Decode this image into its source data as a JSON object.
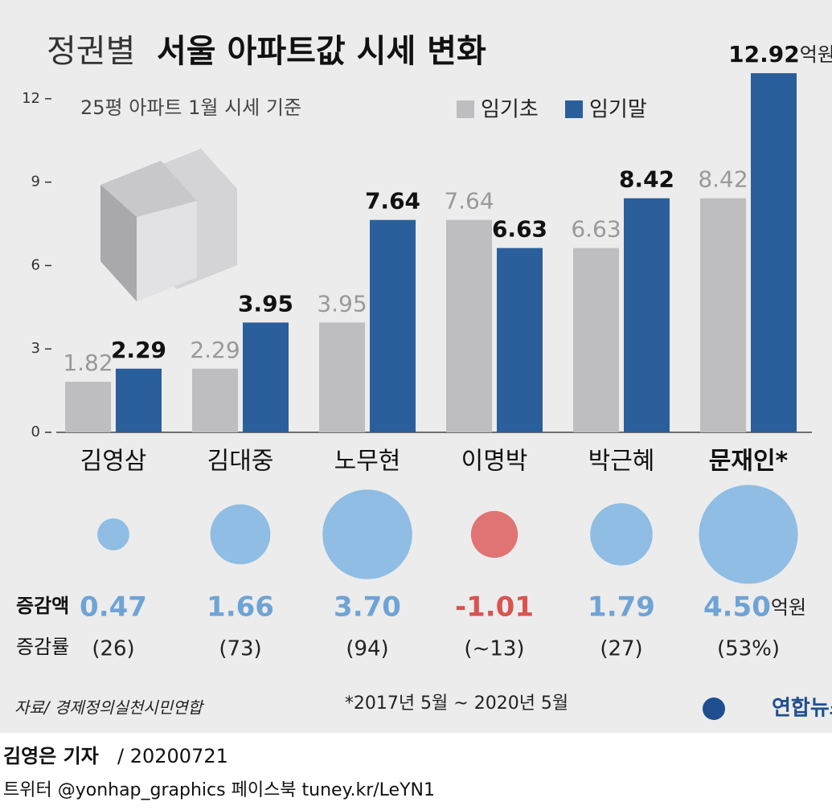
{
  "chart_data": {
    "type": "bar",
    "title_lead": "정권별",
    "title": "서울 아파트값 시세 변화",
    "subtitle": "25평 아파트 1월 시세 기준",
    "categories": [
      "김영삼",
      "김대중",
      "노무현",
      "이명박",
      "박근혜",
      "문재인*"
    ],
    "series": [
      {
        "name": "임기초",
        "color": "#bebec0",
        "values": [
          1.82,
          2.29,
          3.95,
          7.64,
          6.63,
          8.42
        ]
      },
      {
        "name": "임기말",
        "color": "#2a5f9b",
        "values": [
          2.29,
          3.95,
          7.64,
          6.63,
          8.42,
          12.92
        ]
      }
    ],
    "unit": "억원",
    "ylim": [
      0,
      13.5
    ],
    "yticks": [
      0,
      3,
      6,
      9,
      12
    ],
    "changes": {
      "label": "증감액",
      "values": [
        0.47,
        1.66,
        3.7,
        -1.01,
        1.79,
        4.5
      ],
      "value_labels": [
        "0.47",
        "1.66",
        "3.70",
        "-1.01",
        "1.79",
        "4.50"
      ],
      "positive_color": "#8fbde3",
      "negative_color": "#e07474"
    },
    "rates": {
      "label": "증감률",
      "labels": [
        "(26)",
        "(73)",
        "(94)",
        "(~13)",
        "(27)",
        "(53%)"
      ]
    },
    "footnote": "*2017년 5월 ~ 2020년 5월",
    "source": "자료/ 경제정의실천시민연합",
    "logo": "연합뉴스"
  },
  "byline": {
    "author": "김영은 기자",
    "date": "/ 20200721",
    "social": "트위터 @yonhap_graphics  페이스북 tuney.kr/LeYN1"
  }
}
